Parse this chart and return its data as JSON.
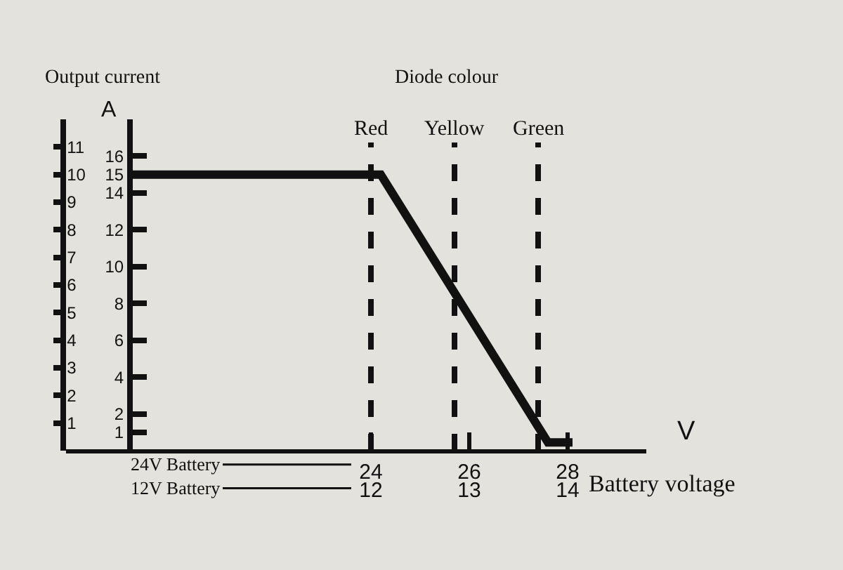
{
  "chart_data": {
    "type": "line",
    "xlabel": "Battery voltage",
    "annotations": [
      "Output current",
      "A",
      "V",
      "Diode colour",
      "24V Battery",
      "12V Battery"
    ],
    "x": [
      19.1,
      24.2,
      27.6,
      28.1
    ],
    "series": [
      {
        "color": "#111111",
        "values": [
          10,
          10,
          0.3,
          0.3
        ]
      }
    ],
    "xlim": [
      17.8,
      29.6
    ],
    "xticks": [
      24,
      26,
      28
    ],
    "x2lim": [
      8.9,
      14.8
    ],
    "x2ticks": [
      12,
      13,
      14
    ],
    "ylim": [
      0,
      12
    ],
    "yticks": [
      1,
      2,
      3,
      4,
      5,
      6,
      7,
      8,
      9,
      10,
      11
    ],
    "y2lim": [
      0,
      18
    ],
    "y2ticks": [
      1,
      2,
      4,
      6,
      8,
      10,
      12,
      14,
      15,
      16
    ],
    "ref_lines": [
      {
        "axis": "x",
        "value": 24,
        "label": "Red",
        "color": "#111111",
        "line_style": "dashed"
      },
      {
        "axis": "x",
        "value": 25.7,
        "label": "Yellow",
        "color": "#111111",
        "line_style": "dashed"
      },
      {
        "axis": "x",
        "value": 27.4,
        "label": "Green",
        "color": "#111111",
        "line_style": "dashed"
      }
    ],
    "grid": false,
    "marker": "none",
    "line_style": "solid"
  }
}
